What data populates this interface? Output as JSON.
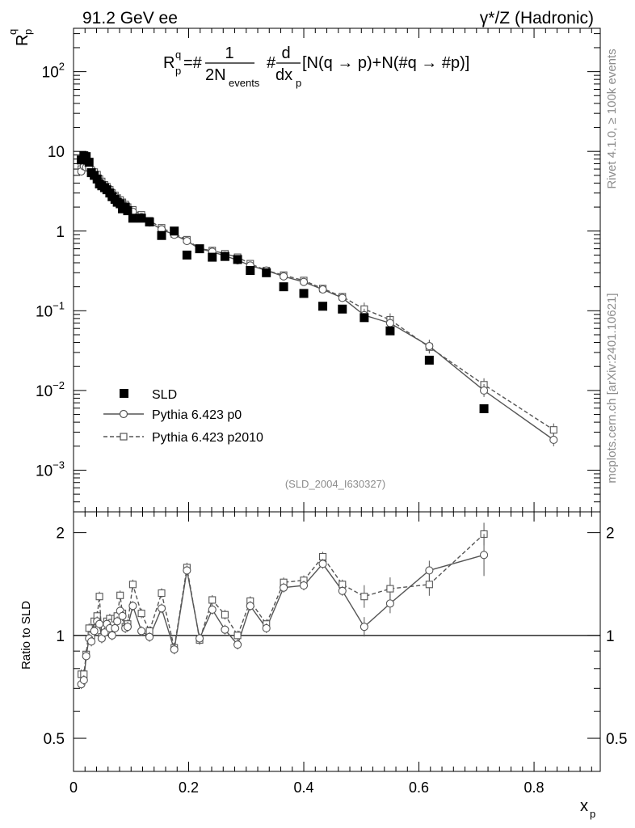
{
  "header": {
    "left": "91.2 GeV ee",
    "right": "γ*/Z (Hadronic)"
  },
  "formula": {
    "lhs": "R",
    "lhs_sub": "p",
    "lhs_sup": "q",
    "eq_hash": "=#",
    "frac1_num": "1",
    "frac1_den": "2N",
    "frac1_den_sub": "events",
    "hash2": "#",
    "frac2_num": "d",
    "frac2_den": "dx",
    "frac2_den_sub": "p",
    "bracket": "[N(q →  p)+N(#q →  #p)]"
  },
  "side_text": {
    "rivet": "Rivet 4.1.0, ≥ 100k events",
    "mcplots": "mcplots.cern.ch [arXiv:2401.10621]"
  },
  "analysis_id": "(SLD_2004_I630327)",
  "colors": {
    "data": "#000000",
    "p0": "#555555",
    "p2010": "#555555",
    "frame": "#000000",
    "side_text": "#8c8c8c"
  },
  "chart_data": [
    {
      "type": "scatter",
      "title": "",
      "ylabel": "R^q_p",
      "xlabel": "",
      "yscale": "log",
      "ylim": [
        0.0003,
        350
      ],
      "xlim": [
        0,
        0.915
      ],
      "y_ticks": [
        {
          "value": 100,
          "mant": "10",
          "exp": "2"
        },
        {
          "value": 10,
          "mant": "10",
          "exp": ""
        },
        {
          "value": 1,
          "mant": "1",
          "exp": ""
        },
        {
          "value": 0.1,
          "mant": "10",
          "exp": "−1"
        },
        {
          "value": 0.01,
          "mant": "10",
          "exp": "−2"
        },
        {
          "value": 0.001,
          "mant": "10",
          "exp": "−3"
        }
      ],
      "legend": {
        "position": "lower-left",
        "entries": [
          {
            "label": "SLD",
            "marker": "filled-square"
          },
          {
            "label": "Pythia 6.423 p0",
            "marker": "open-circle",
            "line": "solid"
          },
          {
            "label": "Pythia 6.423 p2010",
            "marker": "open-square",
            "line": "dashed"
          }
        ]
      },
      "series": [
        {
          "name": "SLD",
          "x": [
            0.0135,
            0.018,
            0.022,
            0.027,
            0.031,
            0.036,
            0.041,
            0.045,
            0.049,
            0.054,
            0.058,
            0.063,
            0.067,
            0.072,
            0.076,
            0.081,
            0.085,
            0.09,
            0.094,
            0.103,
            0.118,
            0.132,
            0.153,
            0.175,
            0.197,
            0.219,
            0.241,
            0.263,
            0.285,
            0.307,
            0.335,
            0.365,
            0.4,
            0.433,
            0.467,
            0.505,
            0.55,
            0.618,
            0.713
          ],
          "values": [
            7.8,
            8.8,
            8.6,
            7.3,
            5.4,
            5.0,
            4.5,
            3.9,
            3.7,
            3.5,
            3.3,
            3.0,
            2.7,
            2.5,
            2.3,
            2.2,
            1.9,
            2.0,
            1.8,
            1.45,
            1.45,
            1.3,
            0.88,
            1.0,
            0.5,
            0.6,
            0.47,
            0.48,
            0.44,
            0.32,
            0.3,
            0.2,
            0.165,
            0.114,
            0.105,
            0.082,
            0.056,
            0.024,
            0.0059
          ]
        },
        {
          "name": "Pythia 6.423 p0",
          "x": [
            0.0135,
            0.018,
            0.022,
            0.027,
            0.031,
            0.036,
            0.041,
            0.045,
            0.049,
            0.054,
            0.058,
            0.063,
            0.067,
            0.072,
            0.076,
            0.081,
            0.085,
            0.09,
            0.094,
            0.103,
            0.118,
            0.132,
            0.153,
            0.175,
            0.197,
            0.219,
            0.241,
            0.263,
            0.285,
            0.307,
            0.335,
            0.365,
            0.4,
            0.433,
            0.467,
            0.505,
            0.55,
            0.618,
            0.713,
            0.834
          ],
          "values": [
            5.6,
            6.5,
            6.3,
            6.1,
            5.4,
            5.1,
            4.6,
            4.2,
            3.9,
            3.6,
            3.4,
            3.1,
            2.9,
            2.7,
            2.5,
            2.3,
            2.2,
            2.05,
            1.9,
            1.75,
            1.5,
            1.28,
            1.05,
            0.9,
            0.75,
            0.6,
            0.55,
            0.49,
            0.43,
            0.37,
            0.32,
            0.27,
            0.23,
            0.185,
            0.145,
            0.088,
            0.07,
            0.036,
            0.01,
            0.0024
          ]
        },
        {
          "name": "Pythia 6.423 p2010",
          "x": [
            0.0135,
            0.018,
            0.022,
            0.027,
            0.031,
            0.036,
            0.041,
            0.045,
            0.049,
            0.054,
            0.058,
            0.063,
            0.067,
            0.072,
            0.076,
            0.081,
            0.085,
            0.09,
            0.094,
            0.103,
            0.118,
            0.132,
            0.153,
            0.175,
            0.197,
            0.219,
            0.241,
            0.263,
            0.285,
            0.307,
            0.335,
            0.365,
            0.4,
            0.433,
            0.467,
            0.505,
            0.55,
            0.618,
            0.713,
            0.834
          ],
          "values": [
            6.0,
            6.8,
            6.6,
            6.5,
            5.8,
            5.5,
            5.1,
            4.5,
            4.2,
            3.8,
            3.6,
            3.3,
            3.0,
            2.8,
            2.6,
            2.45,
            2.3,
            2.15,
            2.0,
            1.85,
            1.6,
            1.35,
            1.1,
            0.92,
            0.78,
            0.6,
            0.57,
            0.52,
            0.47,
            0.39,
            0.32,
            0.28,
            0.24,
            0.19,
            0.15,
            0.105,
            0.077,
            0.035,
            0.0118,
            0.0032
          ]
        }
      ]
    },
    {
      "type": "line",
      "title": "",
      "ylabel": "Ratio to SLD",
      "xlabel": "x_p",
      "yscale": "log",
      "ylim": [
        0.4,
        2.3
      ],
      "xlim": [
        0,
        0.915
      ],
      "x_ticks": [
        0,
        0.2,
        0.4,
        0.6,
        0.8
      ],
      "x_tick_labels": [
        "0",
        "0.2",
        "0.4",
        "0.6",
        "0.8"
      ],
      "y_ticks": [
        0.5,
        1,
        2
      ],
      "y_tick_labels": [
        "0.5",
        "1",
        "2"
      ],
      "reference_line": 1,
      "series": [
        {
          "name": "Pythia 6.423 p0",
          "x": [
            0.0135,
            0.018,
            0.022,
            0.027,
            0.031,
            0.036,
            0.041,
            0.045,
            0.049,
            0.054,
            0.058,
            0.063,
            0.067,
            0.072,
            0.076,
            0.081,
            0.085,
            0.09,
            0.094,
            0.103,
            0.118,
            0.132,
            0.153,
            0.175,
            0.197,
            0.219,
            0.241,
            0.263,
            0.285,
            0.307,
            0.335,
            0.365,
            0.4,
            0.433,
            0.467,
            0.505,
            0.55,
            0.618,
            0.713
          ],
          "values": [
            0.72,
            0.74,
            0.87,
            0.98,
            0.96,
            1.03,
            1.1,
            1.08,
            0.98,
            1.02,
            1.08,
            1.05,
            1.0,
            1.05,
            1.1,
            1.18,
            1.14,
            1.05,
            1.06,
            1.22,
            1.03,
            0.99,
            1.2,
            0.91,
            1.55,
            0.98,
            1.19,
            1.04,
            0.94,
            1.22,
            1.05,
            1.38,
            1.4,
            1.62,
            1.35,
            1.06,
            1.24,
            1.55,
            1.72
          ]
        },
        {
          "name": "Pythia 6.423 p2010",
          "x": [
            0.0135,
            0.018,
            0.022,
            0.027,
            0.031,
            0.036,
            0.041,
            0.045,
            0.049,
            0.054,
            0.058,
            0.063,
            0.067,
            0.072,
            0.076,
            0.081,
            0.085,
            0.09,
            0.094,
            0.103,
            0.118,
            0.132,
            0.153,
            0.175,
            0.197,
            0.219,
            0.241,
            0.263,
            0.285,
            0.307,
            0.335,
            0.365,
            0.4,
            0.433,
            0.467,
            0.505,
            0.55,
            0.618,
            0.713
          ],
          "values": [
            0.77,
            0.77,
            0.88,
            1.05,
            1.0,
            1.1,
            1.14,
            1.3,
            0.99,
            1.05,
            1.1,
            1.12,
            1.09,
            1.12,
            1.14,
            1.31,
            1.16,
            1.06,
            1.08,
            1.41,
            1.16,
            1.03,
            1.33,
            0.92,
            1.58,
            0.97,
            1.27,
            1.15,
            1.0,
            1.26,
            1.08,
            1.43,
            1.45,
            1.7,
            1.41,
            1.3,
            1.37,
            1.41,
            1.98
          ]
        }
      ]
    }
  ]
}
